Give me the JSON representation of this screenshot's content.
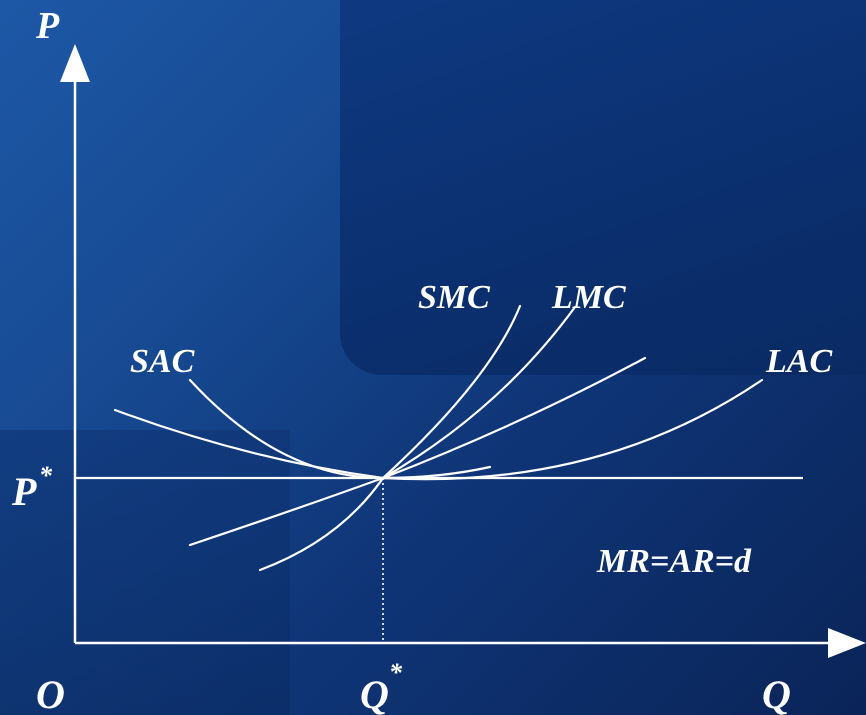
{
  "labels": {
    "y_axis": "P",
    "x_axis": "Q",
    "origin": "O",
    "p_star": "P",
    "q_star": "Q",
    "star": "*",
    "sac": "SAC",
    "smc": "SMC",
    "lmc": "LMC",
    "lac": "LAC",
    "price_line": "MR=AR=d"
  }
}
